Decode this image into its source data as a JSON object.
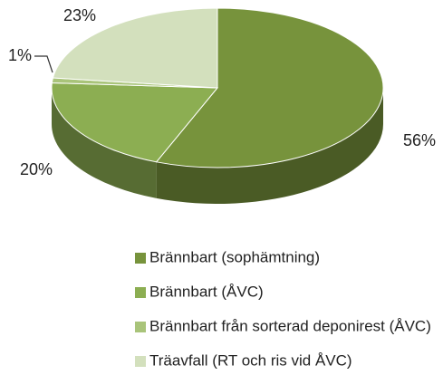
{
  "chart_data": {
    "type": "pie",
    "categories": [
      "Brännbart (sophämtning)",
      "Brännbart (ÅVC)",
      "Brännbart från sorterad deponirest (ÅVC)",
      "Träavfall (RT och ris vid ÅVC)"
    ],
    "values": [
      56,
      20,
      1,
      23
    ],
    "value_labels": [
      "56%",
      "20%",
      "1%",
      "23%"
    ],
    "colors": [
      "#77933c",
      "#8cae52",
      "#a9c47a",
      "#d3e0bd"
    ],
    "legend": "bottom"
  }
}
